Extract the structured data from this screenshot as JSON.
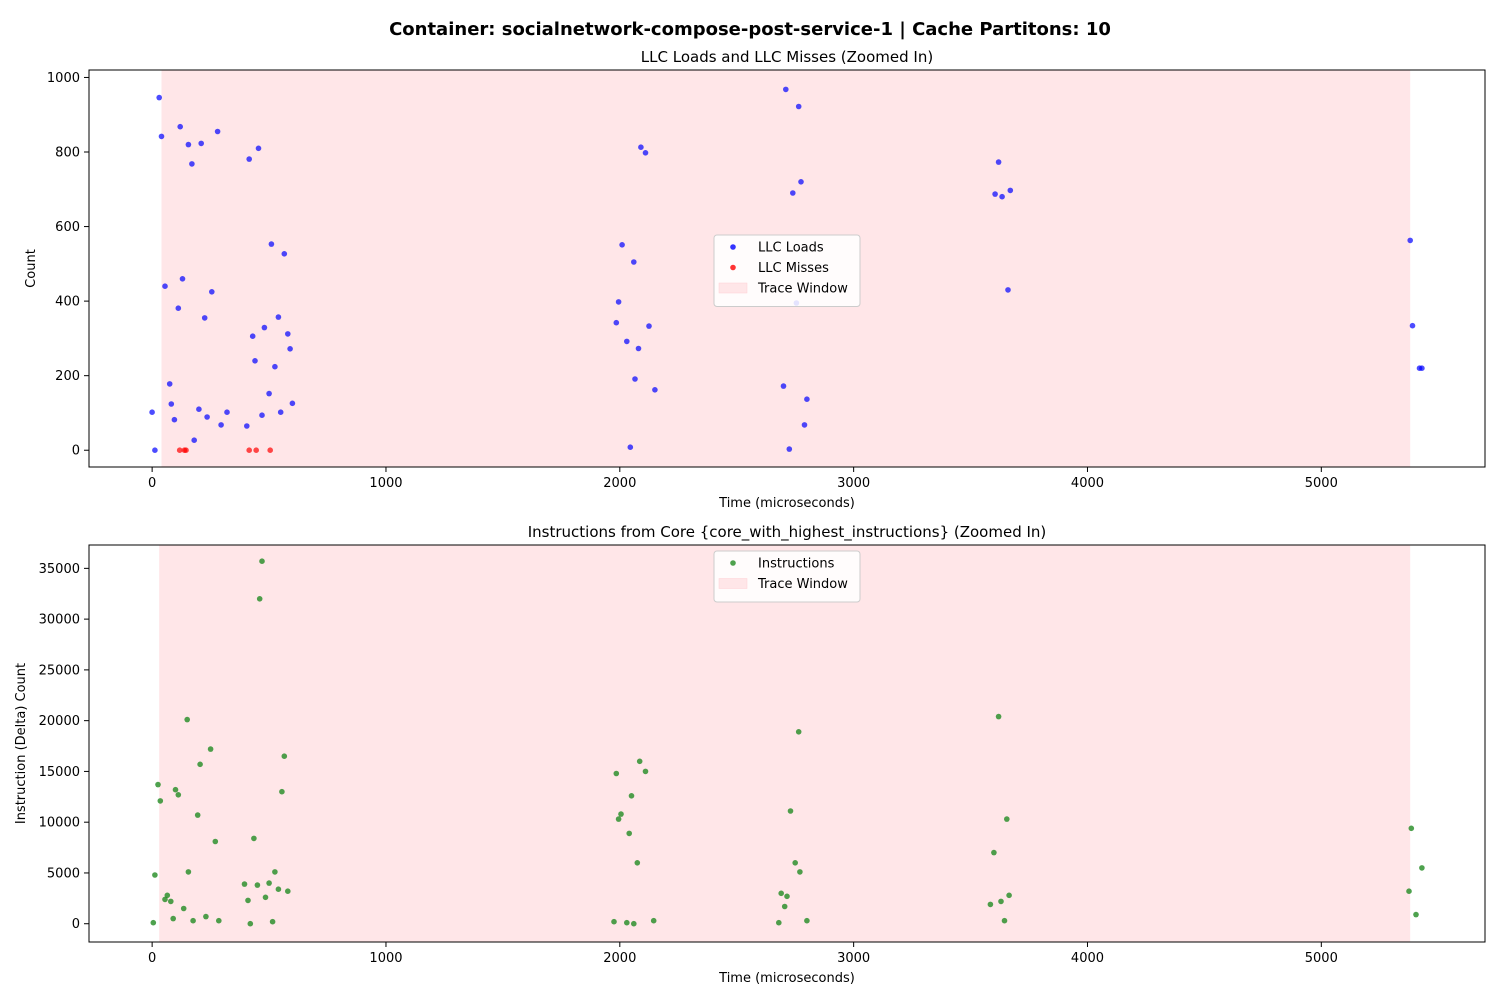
{
  "suptitle": "Container: socialnetwork-compose-post-service-1 | Cache Partitons: 10",
  "chart_data": [
    {
      "type": "scatter",
      "title": "LLC Loads and LLC Misses (Zoomed In)",
      "xlabel": "Time (microseconds)",
      "ylabel": "Count",
      "xlim": [
        -270,
        5700
      ],
      "ylim": [
        -45,
        1020
      ],
      "xticks": [
        0,
        1000,
        2000,
        3000,
        4000,
        5000
      ],
      "yticks": [
        0,
        200,
        400,
        600,
        800,
        1000
      ],
      "legend_loc": "center",
      "trace_window": {
        "label": "Trace Window",
        "start": 40,
        "end": 5380,
        "color": "#ffe6e8"
      },
      "series": [
        {
          "name": "LLC Loads",
          "color": "#0000ff",
          "points": [
            [
              0,
              102
            ],
            [
              12,
              0
            ],
            [
              30,
              946
            ],
            [
              40,
              842
            ],
            [
              55,
              440
            ],
            [
              75,
              178
            ],
            [
              82,
              124
            ],
            [
              95,
              82
            ],
            [
              112,
              381
            ],
            [
              120,
              868
            ],
            [
              130,
              460
            ],
            [
              155,
              820
            ],
            [
              170,
              768
            ],
            [
              180,
              27
            ],
            [
              200,
              110
            ],
            [
              210,
              823
            ],
            [
              225,
              355
            ],
            [
              235,
              89
            ],
            [
              255,
              425
            ],
            [
              280,
              855
            ],
            [
              295,
              68
            ],
            [
              320,
              102
            ],
            [
              405,
              65
            ],
            [
              415,
              781
            ],
            [
              430,
              306
            ],
            [
              440,
              240
            ],
            [
              455,
              810
            ],
            [
              470,
              94
            ],
            [
              480,
              329
            ],
            [
              500,
              152
            ],
            [
              510,
              553
            ],
            [
              525,
              224
            ],
            [
              540,
              357
            ],
            [
              550,
              102
            ],
            [
              565,
              527
            ],
            [
              580,
              312
            ],
            [
              590,
              272
            ],
            [
              600,
              126
            ],
            [
              1985,
              342
            ],
            [
              1995,
              398
            ],
            [
              2010,
              551
            ],
            [
              2030,
              292
            ],
            [
              2045,
              8
            ],
            [
              2060,
              505
            ],
            [
              2065,
              191
            ],
            [
              2080,
              273
            ],
            [
              2090,
              813
            ],
            [
              2110,
              798
            ],
            [
              2125,
              333
            ],
            [
              2150,
              162
            ],
            [
              2700,
              172
            ],
            [
              2710,
              968
            ],
            [
              2725,
              3
            ],
            [
              2740,
              690
            ],
            [
              2755,
              395
            ],
            [
              2765,
              922
            ],
            [
              2775,
              720
            ],
            [
              2790,
              68
            ],
            [
              2800,
              137
            ],
            [
              3605,
              687
            ],
            [
              3620,
              773
            ],
            [
              3635,
              680
            ],
            [
              3660,
              430
            ],
            [
              3670,
              697
            ],
            [
              5380,
              563
            ],
            [
              5390,
              334
            ],
            [
              5420,
              220
            ],
            [
              5430,
              220
            ]
          ]
        },
        {
          "name": "LLC Misses",
          "color": "#ff0000",
          "points": [
            [
              118,
              0
            ],
            [
              138,
              0
            ],
            [
              145,
              0
            ],
            [
              415,
              0
            ],
            [
              445,
              0
            ],
            [
              505,
              0
            ]
          ]
        }
      ]
    },
    {
      "type": "scatter",
      "title": "Instructions from Core {core_with_highest_instructions} (Zoomed In)",
      "xlabel": "Time (microseconds)",
      "ylabel": "Instruction (Delta) Count",
      "xlim": [
        -270,
        5700
      ],
      "ylim": [
        -1800,
        37300
      ],
      "xticks": [
        0,
        1000,
        2000,
        3000,
        4000,
        5000
      ],
      "yticks": [
        0,
        5000,
        10000,
        15000,
        20000,
        25000,
        30000,
        35000
      ],
      "legend_loc": "upper center",
      "trace_window": {
        "label": "Trace Window",
        "start": 30,
        "end": 5380,
        "color": "#ffe6e8"
      },
      "series": [
        {
          "name": "Instructions",
          "color": "#228b22",
          "points": [
            [
              5,
              100
            ],
            [
              12,
              4800
            ],
            [
              25,
              13700
            ],
            [
              35,
              12100
            ],
            [
              55,
              2400
            ],
            [
              65,
              2800
            ],
            [
              80,
              2200
            ],
            [
              90,
              500
            ],
            [
              100,
              13200
            ],
            [
              112,
              12700
            ],
            [
              135,
              1500
            ],
            [
              150,
              20100
            ],
            [
              155,
              5100
            ],
            [
              175,
              300
            ],
            [
              195,
              10700
            ],
            [
              205,
              15700
            ],
            [
              230,
              700
            ],
            [
              250,
              17200
            ],
            [
              270,
              8100
            ],
            [
              285,
              300
            ],
            [
              395,
              3900
            ],
            [
              410,
              2300
            ],
            [
              420,
              0
            ],
            [
              435,
              8400
            ],
            [
              450,
              3800
            ],
            [
              460,
              32000
            ],
            [
              470,
              35700
            ],
            [
              485,
              2600
            ],
            [
              500,
              4000
            ],
            [
              515,
              200
            ],
            [
              525,
              5100
            ],
            [
              540,
              3400
            ],
            [
              555,
              13000
            ],
            [
              565,
              16500
            ],
            [
              580,
              3200
            ],
            [
              1975,
              200
            ],
            [
              1985,
              14800
            ],
            [
              1995,
              10300
            ],
            [
              2005,
              10800
            ],
            [
              2030,
              100
            ],
            [
              2040,
              8900
            ],
            [
              2050,
              12600
            ],
            [
              2060,
              0
            ],
            [
              2075,
              6000
            ],
            [
              2085,
              16000
            ],
            [
              2110,
              15000
            ],
            [
              2145,
              300
            ],
            [
              2680,
              100
            ],
            [
              2690,
              3000
            ],
            [
              2705,
              1700
            ],
            [
              2715,
              2700
            ],
            [
              2730,
              11100
            ],
            [
              2750,
              6000
            ],
            [
              2765,
              18900
            ],
            [
              2770,
              5100
            ],
            [
              2800,
              300
            ],
            [
              3585,
              1900
            ],
            [
              3600,
              7000
            ],
            [
              3620,
              20400
            ],
            [
              3630,
              2200
            ],
            [
              3645,
              300
            ],
            [
              3655,
              10300
            ],
            [
              3665,
              2800
            ],
            [
              5375,
              3200
            ],
            [
              5385,
              9400
            ],
            [
              5405,
              900
            ],
            [
              5430,
              5500
            ]
          ]
        }
      ]
    }
  ]
}
